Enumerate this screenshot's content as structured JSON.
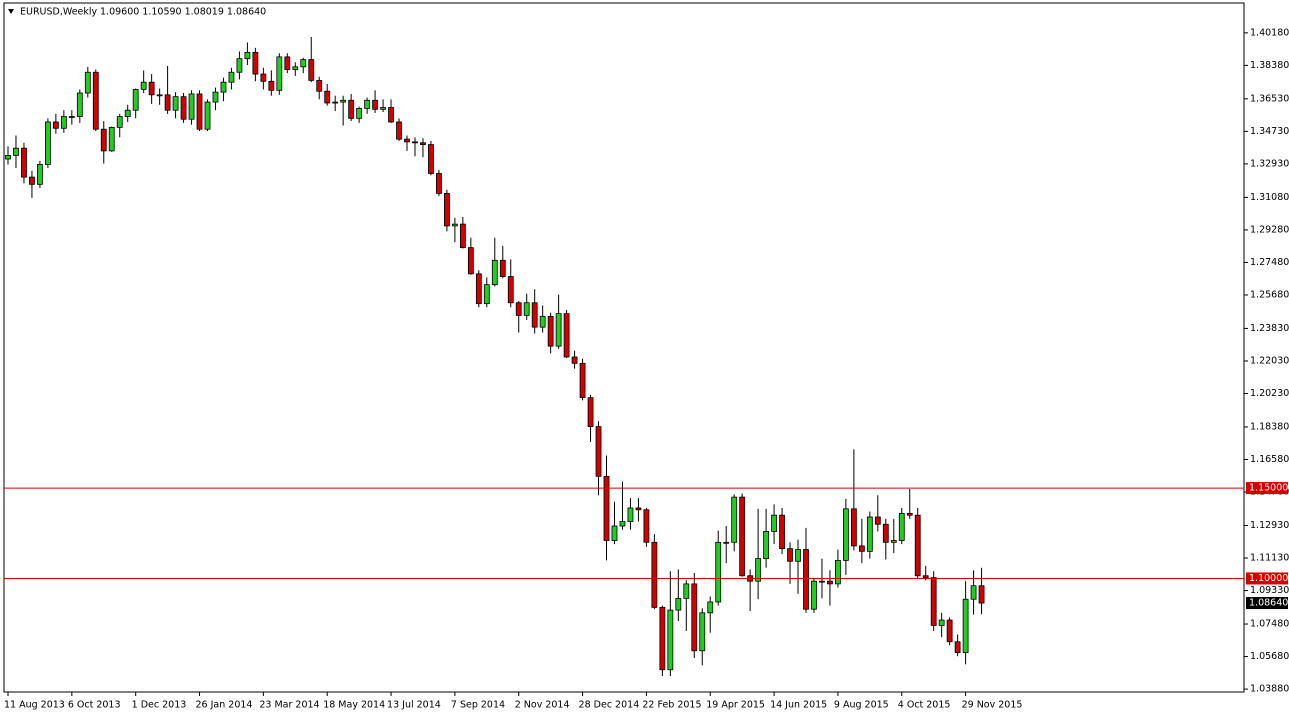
{
  "chart_data": {
    "type": "candlestick",
    "title": "EURUSD,Weekly",
    "subtitle": "1.09600 1.10590 1.08019 1.08640",
    "up_color": "#22cc22",
    "down_color": "#d40000",
    "line_color": "#d40000",
    "ylim": [
      1.0372,
      1.4183
    ],
    "yticks": [
      {
        "value": 1.4018,
        "label": "1.40180"
      },
      {
        "value": 1.3838,
        "label": "1.38380"
      },
      {
        "value": 1.3653,
        "label": "1.36530"
      },
      {
        "value": 1.3473,
        "label": "1.34730"
      },
      {
        "value": 1.3293,
        "label": "1.32930"
      },
      {
        "value": 1.3108,
        "label": "1.31080"
      },
      {
        "value": 1.2928,
        "label": "1.29280"
      },
      {
        "value": 1.2748,
        "label": "1.27480"
      },
      {
        "value": 1.2568,
        "label": "1.25680"
      },
      {
        "value": 1.2383,
        "label": "1.23830"
      },
      {
        "value": 1.2203,
        "label": "1.22030"
      },
      {
        "value": 1.2023,
        "label": "1.20230"
      },
      {
        "value": 1.1838,
        "label": "1.18380"
      },
      {
        "value": 1.1658,
        "label": "1.16580"
      },
      {
        "value": 1.1478,
        "label": "1.14780"
      },
      {
        "value": 1.1293,
        "label": "1.12930"
      },
      {
        "value": 1.1113,
        "label": "1.11130"
      },
      {
        "value": 1.0933,
        "label": "1.09330"
      },
      {
        "value": 1.0748,
        "label": "1.07480"
      },
      {
        "value": 1.0568,
        "label": "1.05680"
      },
      {
        "value": 1.0388,
        "label": "1.03880"
      }
    ],
    "hlines": [
      {
        "value": 1.15,
        "label": "1.15000"
      },
      {
        "value": 1.1,
        "label": "1.10000"
      }
    ],
    "price_label": {
      "value": 1.0864,
      "label": "1.08640"
    },
    "categories": [
      "11 Aug 2013",
      null,
      null,
      null,
      null,
      null,
      null,
      null,
      "6 Oct 2013",
      null,
      null,
      null,
      null,
      null,
      null,
      null,
      "1 Dec 2013",
      null,
      null,
      null,
      null,
      null,
      null,
      null,
      "26 Jan 2014",
      null,
      null,
      null,
      null,
      null,
      null,
      null,
      "23 Mar 2014",
      null,
      null,
      null,
      null,
      null,
      null,
      null,
      "18 May 2014",
      null,
      null,
      null,
      null,
      null,
      null,
      null,
      "13 Jul 2014",
      null,
      null,
      null,
      null,
      null,
      null,
      null,
      "7 Sep 2014",
      null,
      null,
      null,
      null,
      null,
      null,
      null,
      "2 Nov 2014",
      null,
      null,
      null,
      null,
      null,
      null,
      null,
      "28 Dec 2014",
      null,
      null,
      null,
      null,
      null,
      null,
      null,
      "22 Feb 2015",
      null,
      null,
      null,
      null,
      null,
      null,
      null,
      "19 Apr 2015",
      null,
      null,
      null,
      null,
      null,
      null,
      null,
      "14 Jun 2015",
      null,
      null,
      null,
      null,
      null,
      null,
      null,
      "9 Aug 2015",
      null,
      null,
      null,
      null,
      null,
      null,
      null,
      "4 Oct 2015",
      null,
      null,
      null,
      null,
      null,
      null,
      null,
      "29 Nov 2015",
      null,
      null
    ],
    "open": [
      1.332,
      1.334,
      1.338,
      1.322,
      1.318,
      1.329,
      1.3525,
      1.349,
      1.3555,
      1.3555,
      1.3685,
      1.38,
      1.3485,
      1.3365,
      1.3495,
      1.3555,
      1.359,
      1.3705,
      1.3745,
      1.3675,
      1.3675,
      1.359,
      1.3665,
      1.354,
      1.368,
      1.3485,
      1.3635,
      1.369,
      1.3745,
      1.38,
      1.3875,
      1.391,
      1.379,
      1.375,
      1.37,
      1.3885,
      1.3815,
      1.383,
      1.387,
      1.3755,
      1.3695,
      1.363,
      1.3635,
      1.3645,
      1.3545,
      1.36,
      1.3645,
      1.3595,
      1.3605,
      1.3525,
      1.343,
      1.3415,
      1.341,
      1.34,
      1.324,
      1.313,
      1.295,
      1.296,
      1.283,
      1.2685,
      1.252,
      1.2625,
      1.276,
      1.267,
      1.2525,
      1.2455,
      1.2525,
      1.239,
      1.245,
      1.2285,
      1.2465,
      1.2225,
      1.219,
      1.2,
      1.184,
      1.1565,
      1.121,
      1.129,
      1.1315,
      1.139,
      1.138,
      1.12,
      1.084,
      1.0495,
      1.0825,
      1.089,
      1.097,
      1.06,
      1.081,
      1.087,
      1.12,
      1.12,
      1.145,
      1.1015,
      1.0985,
      1.111,
      1.126,
      1.135,
      1.1165,
      1.1095,
      1.116,
      1.083,
      1.0985,
      1.0985,
      1.097,
      1.11,
      1.1385,
      1.118,
      1.115,
      1.134,
      1.13,
      1.12,
      1.121,
      1.136,
      1.135,
      1.1015,
      1.1005,
      1.074,
      1.077,
      1.065,
      1.059,
      1.0885,
      1.096
    ],
    "high": [
      1.339,
      1.345,
      1.341,
      1.3255,
      1.331,
      1.3545,
      1.357,
      1.359,
      1.359,
      1.3705,
      1.383,
      1.3815,
      1.353,
      1.35,
      1.357,
      1.362,
      1.371,
      1.381,
      1.379,
      1.371,
      1.3835,
      1.369,
      1.3685,
      1.37,
      1.37,
      1.365,
      1.3715,
      1.377,
      1.3825,
      1.3915,
      1.3965,
      1.3935,
      1.3825,
      1.381,
      1.3905,
      1.3905,
      1.3855,
      1.388,
      1.3995,
      1.3775,
      1.3735,
      1.367,
      1.367,
      1.368,
      1.361,
      1.366,
      1.37,
      1.365,
      1.365,
      1.3545,
      1.345,
      1.344,
      1.3435,
      1.342,
      1.326,
      1.315,
      1.2995,
      1.3,
      1.2885,
      1.2705,
      1.2665,
      1.2885,
      1.284,
      1.2765,
      1.2535,
      1.2575,
      1.26,
      1.251,
      1.247,
      1.257,
      1.2485,
      1.226,
      1.2215,
      1.2015,
      1.187,
      1.168,
      1.1425,
      1.1535,
      1.1445,
      1.1445,
      1.139,
      1.1245,
      1.085,
      1.104,
      1.105,
      1.099,
      1.103,
      1.0835,
      1.09,
      1.1265,
      1.129,
      1.1465,
      1.147,
      1.105,
      1.1385,
      1.1385,
      1.141,
      1.139,
      1.12,
      1.1215,
      1.128,
      1.1,
      1.111,
      1.1045,
      1.116,
      1.144,
      1.1714,
      1.133,
      1.137,
      1.146,
      1.133,
      1.133,
      1.139,
      1.1495,
      1.139,
      1.107,
      1.104,
      1.081,
      1.0785,
      1.069,
      1.0985,
      1.1045,
      1.1059
    ],
    "low": [
      1.329,
      1.327,
      1.3185,
      1.3105,
      1.316,
      1.327,
      1.346,
      1.3465,
      1.351,
      1.352,
      1.366,
      1.3475,
      1.3295,
      1.336,
      1.344,
      1.3525,
      1.3545,
      1.3685,
      1.3625,
      1.362,
      1.357,
      1.3545,
      1.352,
      1.351,
      1.3475,
      1.3475,
      1.359,
      1.364,
      1.3705,
      1.376,
      1.384,
      1.375,
      1.3705,
      1.367,
      1.3675,
      1.3795,
      1.378,
      1.3795,
      1.3745,
      1.365,
      1.3615,
      1.3585,
      1.3505,
      1.353,
      1.352,
      1.357,
      1.3575,
      1.358,
      1.352,
      1.342,
      1.3365,
      1.3335,
      1.333,
      1.323,
      1.3115,
      1.292,
      1.286,
      1.2825,
      1.268,
      1.25,
      1.25,
      1.2615,
      1.266,
      1.25,
      1.236,
      1.243,
      1.2355,
      1.236,
      1.2245,
      1.227,
      1.222,
      1.216,
      1.1985,
      1.1755,
      1.146,
      1.11,
      1.119,
      1.127,
      1.127,
      1.1315,
      1.1175,
      1.083,
      1.046,
      1.046,
      1.0765,
      1.071,
      1.056,
      1.052,
      1.07,
      1.085,
      1.1085,
      1.115,
      1.101,
      1.082,
      1.0885,
      1.106,
      1.119,
      1.1135,
      1.097,
      1.0915,
      1.081,
      1.081,
      1.089,
      1.085,
      1.095,
      1.102,
      1.1155,
      1.1085,
      1.111,
      1.126,
      1.1105,
      1.114,
      1.119,
      1.133,
      1.1,
      1.099,
      1.071,
      1.0675,
      1.063,
      1.057,
      1.0525,
      1.08,
      1.0802
    ],
    "close": [
      1.334,
      1.338,
      1.322,
      1.318,
      1.329,
      1.3525,
      1.349,
      1.3555,
      1.3555,
      1.3685,
      1.38,
      1.3485,
      1.3365,
      1.3495,
      1.3555,
      1.359,
      1.3705,
      1.3745,
      1.3675,
      1.3675,
      1.359,
      1.3665,
      1.354,
      1.368,
      1.3485,
      1.3635,
      1.369,
      1.3745,
      1.38,
      1.3875,
      1.391,
      1.379,
      1.375,
      1.37,
      1.3885,
      1.3815,
      1.383,
      1.387,
      1.3755,
      1.3695,
      1.363,
      1.3635,
      1.3645,
      1.3545,
      1.36,
      1.3645,
      1.3595,
      1.3605,
      1.3525,
      1.343,
      1.3415,
      1.341,
      1.34,
      1.324,
      1.313,
      1.295,
      1.296,
      1.283,
      1.2685,
      1.252,
      1.2625,
      1.276,
      1.267,
      1.2525,
      1.2455,
      1.2525,
      1.239,
      1.245,
      1.2285,
      1.2465,
      1.2225,
      1.219,
      1.2,
      1.184,
      1.1565,
      1.121,
      1.129,
      1.1315,
      1.139,
      1.138,
      1.12,
      1.084,
      1.0495,
      1.0825,
      1.089,
      1.097,
      1.06,
      1.081,
      1.087,
      1.12,
      1.12,
      1.145,
      1.1015,
      1.0985,
      1.111,
      1.126,
      1.135,
      1.1165,
      1.1095,
      1.116,
      1.083,
      1.0985,
      1.0985,
      1.097,
      1.11,
      1.1385,
      1.118,
      1.115,
      1.134,
      1.13,
      1.12,
      1.121,
      1.136,
      1.135,
      1.1015,
      1.1005,
      1.074,
      1.077,
      1.065,
      1.059,
      1.0885,
      1.096,
      1.0864
    ]
  }
}
